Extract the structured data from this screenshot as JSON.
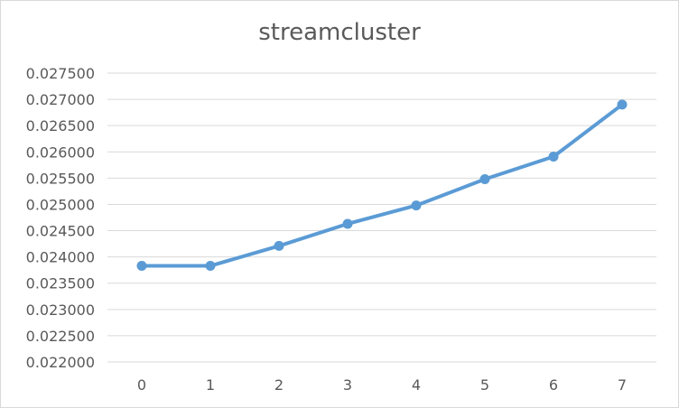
{
  "chart_data": {
    "type": "line",
    "title": "streamcluster",
    "xlabel": "",
    "ylabel": "",
    "categories": [
      "0",
      "1",
      "2",
      "3",
      "4",
      "5",
      "6",
      "7"
    ],
    "series": [
      {
        "values": [
          0.02383,
          0.02383,
          0.02421,
          0.02463,
          0.02498,
          0.02548,
          0.02591,
          0.0269
        ]
      }
    ],
    "ylim": [
      0.022,
      0.0275
    ],
    "yticks": [
      "0.022000",
      "0.022500",
      "0.023000",
      "0.023500",
      "0.024000",
      "0.024500",
      "0.025000",
      "0.025500",
      "0.026000",
      "0.026500",
      "0.027000",
      "0.027500"
    ],
    "ytick_values": [
      0.022,
      0.0225,
      0.023,
      0.0235,
      0.024,
      0.0245,
      0.025,
      0.0255,
      0.026,
      0.0265,
      0.027,
      0.0275
    ],
    "grid": true,
    "legend": "none",
    "colors": {
      "series": "#5b9bd5",
      "grid": "#d9d9d9",
      "text": "#595959"
    }
  }
}
